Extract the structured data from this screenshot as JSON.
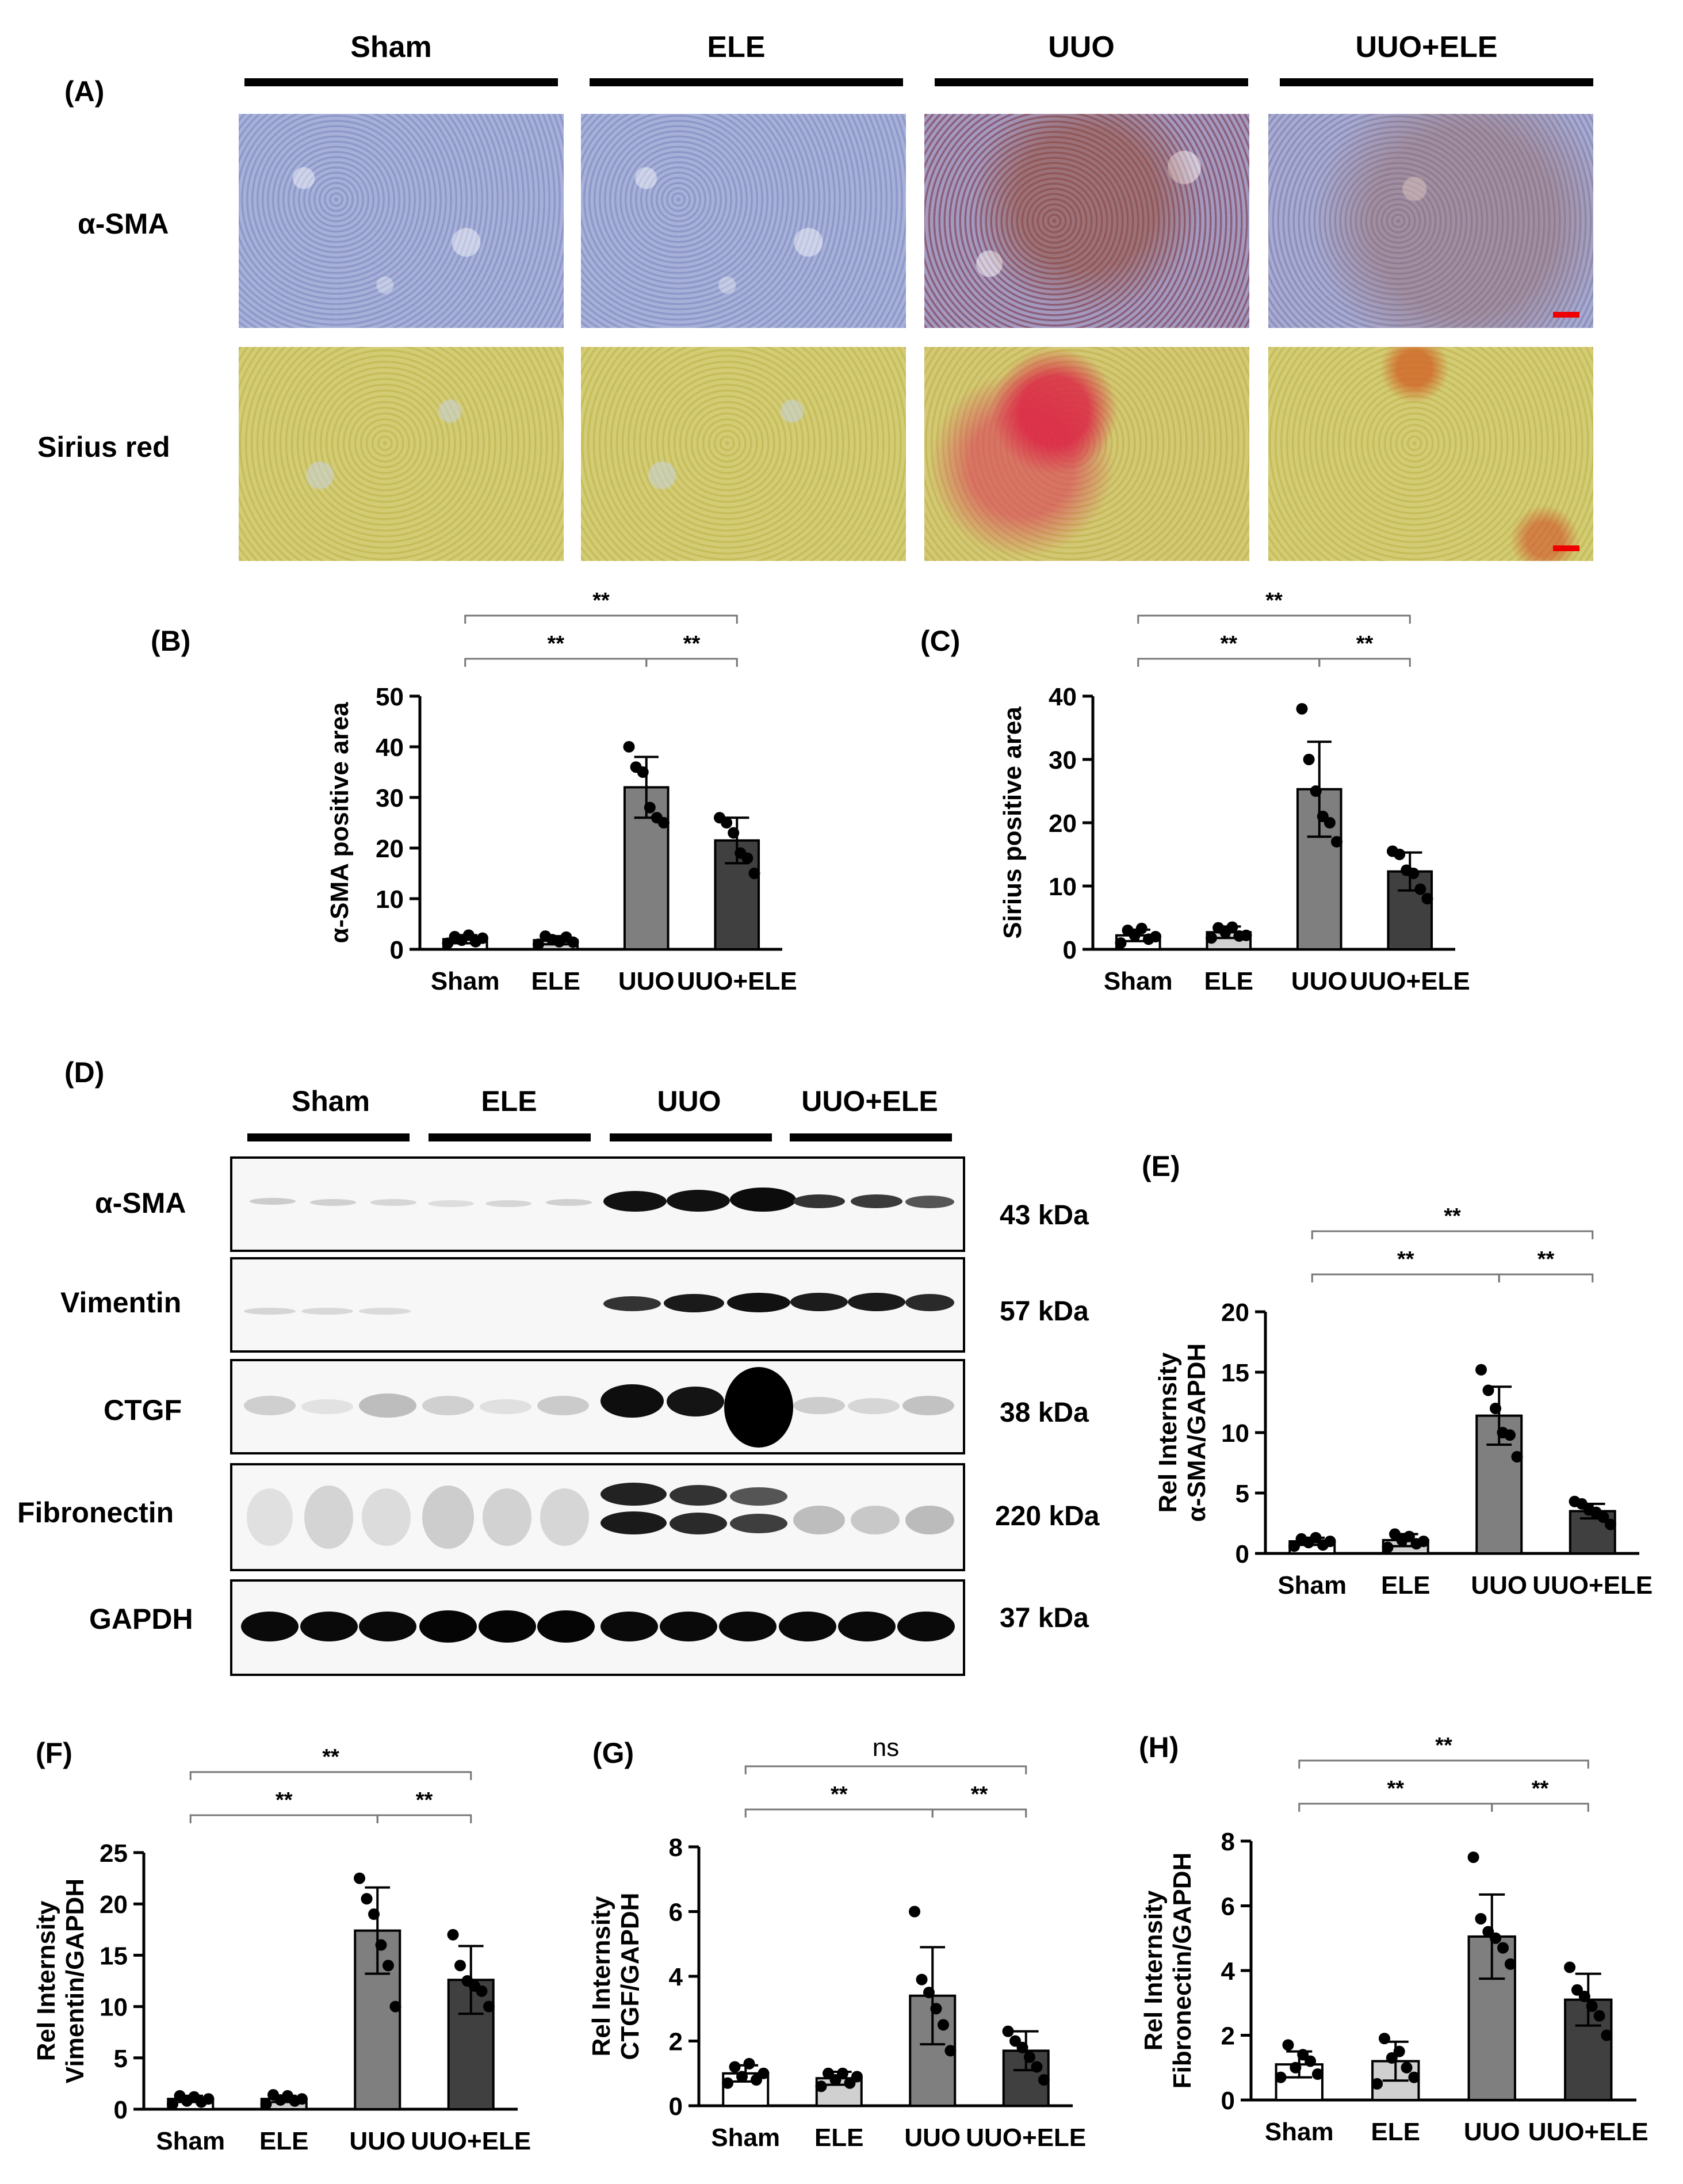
{
  "panel_labels": {
    "A": "(A)",
    "B": "(B)",
    "C": "(C)",
    "D": "(D)",
    "E": "(E)",
    "F": "(F)",
    "G": "(G)",
    "H": "(H)"
  },
  "groups": [
    "Sham",
    "ELE",
    "UUO",
    "UUO+ELE"
  ],
  "panelA": {
    "row_labels": [
      "α-SMA",
      "Sirius red"
    ]
  },
  "panelD": {
    "proteins": [
      "α-SMA",
      "Vimentin",
      "CTGF",
      "Fibronectin",
      "GAPDH"
    ],
    "sizes": [
      "43 kDa",
      "57 kDa",
      "38 kDa",
      "220 kDa",
      "37 kDa"
    ]
  },
  "colors": {
    "sham": "#ffffff",
    "ele": "#d0d0d0",
    "uuo": "#7f7f7f",
    "uuo_ele": "#404040",
    "scale_bar": "#ee0000"
  },
  "chart_data": [
    {
      "id": "B",
      "type": "bar",
      "categories": [
        "Sham",
        "ELE",
        "UUO",
        "UUO+ELE"
      ],
      "ylabel": "α-SMA positive area",
      "ylim": [
        0,
        50
      ],
      "yticks": [
        0,
        10,
        20,
        30,
        40,
        50
      ],
      "values": [
        2,
        1.8,
        32,
        21.5
      ],
      "errors": [
        0.8,
        0.8,
        6,
        4.5
      ],
      "points": [
        [
          1.2,
          2.5,
          1.8,
          2.8,
          1.5,
          2.2
        ],
        [
          1.0,
          2.6,
          1.9,
          1.5,
          2.4,
          1.4
        ],
        [
          40,
          36,
          35,
          28,
          26,
          25
        ],
        [
          26,
          25,
          23,
          19,
          18,
          15
        ]
      ],
      "significance": [
        {
          "from": 0,
          "to": 2,
          "label": "**"
        },
        {
          "from": 2,
          "to": 3,
          "label": "**"
        },
        {
          "from": 0,
          "to": 3,
          "label": "**"
        }
      ]
    },
    {
      "id": "C",
      "type": "bar",
      "categories": [
        "Sham",
        "ELE",
        "UUO",
        "UUO+ELE"
      ],
      "ylabel": "Sirius positive area",
      "ylim": [
        0,
        40
      ],
      "yticks": [
        0,
        10,
        20,
        30,
        40
      ],
      "values": [
        2.2,
        2.7,
        25.3,
        12.3
      ],
      "errors": [
        0.9,
        0.9,
        7.5,
        3
      ],
      "points": [
        [
          1.0,
          3.0,
          2.2,
          3.3,
          1.6,
          2.0
        ],
        [
          1.8,
          3.4,
          2.7,
          3.5,
          2.1,
          2.2
        ],
        [
          38,
          30,
          25,
          21,
          20,
          17
        ],
        [
          15.5,
          15,
          12.5,
          12,
          9.5,
          8
        ]
      ],
      "significance": [
        {
          "from": 0,
          "to": 2,
          "label": "**"
        },
        {
          "from": 2,
          "to": 3,
          "label": "**"
        },
        {
          "from": 0,
          "to": 3,
          "label": "**"
        }
      ]
    },
    {
      "id": "E",
      "type": "bar",
      "categories": [
        "Sham",
        "ELE",
        "UUO",
        "UUO+ELE"
      ],
      "ylabel": "Rel Internsity\nα-SMA/GAPDH",
      "ylim": [
        0,
        20
      ],
      "yticks": [
        0,
        5,
        10,
        15,
        20
      ],
      "values": [
        1.0,
        1.1,
        11.4,
        3.5
      ],
      "errors": [
        0.3,
        0.5,
        2.4,
        0.6
      ],
      "points": [
        [
          0.6,
          1.2,
          0.9,
          1.3,
          0.7,
          1.0
        ],
        [
          0.5,
          1.6,
          1.1,
          1.4,
          0.8,
          1.0
        ],
        [
          15.2,
          13.5,
          12,
          10,
          9.8,
          8
        ],
        [
          4.3,
          4.1,
          3.6,
          3.4,
          3.0,
          2.4
        ]
      ],
      "significance": [
        {
          "from": 0,
          "to": 2,
          "label": "**"
        },
        {
          "from": 2,
          "to": 3,
          "label": "**"
        },
        {
          "from": 0,
          "to": 3,
          "label": "**"
        }
      ]
    },
    {
      "id": "F",
      "type": "bar",
      "categories": [
        "Sham",
        "ELE",
        "UUO",
        "UUO+ELE"
      ],
      "ylabel": "Rel Internsity\nVimentin/GAPDH",
      "ylim": [
        0,
        25
      ],
      "yticks": [
        0,
        5,
        10,
        15,
        20,
        25
      ],
      "values": [
        1.0,
        1.0,
        17.4,
        12.6
      ],
      "errors": [
        0.3,
        0.3,
        4.2,
        3.3
      ],
      "points": [
        [
          0.5,
          1.3,
          0.8,
          1.2,
          0.7,
          1.0
        ],
        [
          0.5,
          1.4,
          0.9,
          1.3,
          0.8,
          1.0
        ],
        [
          22.5,
          20.5,
          19,
          16,
          14,
          10
        ],
        [
          17,
          14,
          12.5,
          12,
          11.5,
          10
        ]
      ],
      "significance": [
        {
          "from": 0,
          "to": 2,
          "label": "**"
        },
        {
          "from": 2,
          "to": 3,
          "label": "**"
        },
        {
          "from": 0,
          "to": 3,
          "label": "**"
        }
      ]
    },
    {
      "id": "G",
      "type": "bar",
      "categories": [
        "Sham",
        "ELE",
        "UUO",
        "UUO+ELE"
      ],
      "ylabel": "Rel Internsity\nCTGF/GAPDH",
      "ylim": [
        0,
        8
      ],
      "yticks": [
        0,
        2,
        4,
        6,
        8
      ],
      "values": [
        1.0,
        0.85,
        3.4,
        1.7
      ],
      "errors": [
        0.25,
        0.2,
        1.5,
        0.6
      ],
      "points": [
        [
          0.7,
          1.2,
          0.9,
          1.3,
          0.8,
          1.0
        ],
        [
          0.6,
          1.0,
          0.8,
          1.0,
          0.7,
          0.9
        ],
        [
          6.0,
          3.9,
          3.5,
          3.0,
          2.5,
          1.7
        ],
        [
          2.3,
          2.0,
          1.8,
          1.5,
          1.2,
          0.8
        ]
      ],
      "significance": [
        {
          "from": 0,
          "to": 2,
          "label": "**"
        },
        {
          "from": 2,
          "to": 3,
          "label": "**"
        },
        {
          "from": 0,
          "to": 3,
          "label": "ns"
        }
      ]
    },
    {
      "id": "H",
      "type": "bar",
      "categories": [
        "Sham",
        "ELE",
        "UUO",
        "UUO+ELE"
      ],
      "ylabel": "Rel Internsity\nFibronectin/GAPDH",
      "ylim": [
        0,
        8
      ],
      "yticks": [
        0,
        2,
        4,
        6,
        8
      ],
      "values": [
        1.1,
        1.2,
        5.05,
        3.1
      ],
      "errors": [
        0.4,
        0.6,
        1.3,
        0.8
      ],
      "points": [
        [
          0.7,
          1.7,
          1.0,
          1.4,
          1.2,
          0.8
        ],
        [
          0.5,
          1.9,
          1.3,
          1.5,
          1.0,
          0.7
        ],
        [
          7.5,
          5.6,
          5.2,
          5.0,
          4.7,
          4.2
        ],
        [
          4.1,
          3.4,
          3.2,
          2.9,
          2.6,
          2.0
        ]
      ],
      "significance": [
        {
          "from": 0,
          "to": 2,
          "label": "**"
        },
        {
          "from": 2,
          "to": 3,
          "label": "**"
        },
        {
          "from": 0,
          "to": 3,
          "label": "**"
        }
      ]
    }
  ]
}
